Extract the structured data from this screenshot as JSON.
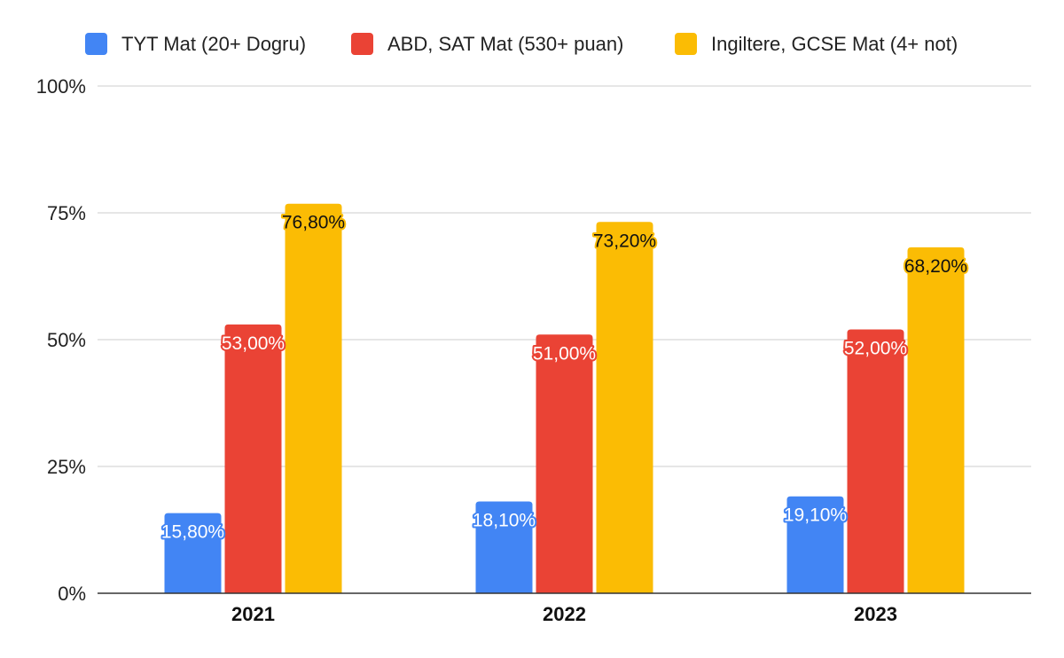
{
  "chart_data": {
    "type": "bar",
    "title": "",
    "xlabel": "",
    "ylabel": "",
    "categories": [
      "2021",
      "2022",
      "2023"
    ],
    "ylim": [
      0,
      100
    ],
    "yticks": [
      0,
      25,
      50,
      75,
      100
    ],
    "ytick_labels": [
      "0%",
      "25%",
      "50%",
      "75%",
      "100%"
    ],
    "grid": true,
    "legend_position": "top",
    "series": [
      {
        "name": "TYT Mat (20+ Dogru)",
        "color": "#4285F4",
        "label_text_color": "#ffffff",
        "label_halo_color": "#4285F4",
        "values": [
          15.8,
          18.1,
          19.1
        ],
        "labels": [
          "15,80%",
          "18,10%",
          "19,10%"
        ]
      },
      {
        "name": "ABD, SAT Mat (530+ puan)",
        "color": "#EA4335",
        "label_text_color": "#ffffff",
        "label_halo_color": "#EA4335",
        "values": [
          53.0,
          51.0,
          52.0
        ],
        "labels": [
          "53,00%",
          "51,00%",
          "52,00%"
        ]
      },
      {
        "name": "Ingiltere, GCSE Mat (4+ not)",
        "color": "#FBBC04",
        "label_text_color": "#111111",
        "label_halo_color": "#FBBC04",
        "values": [
          76.8,
          73.2,
          68.2
        ],
        "labels": [
          "76,80%",
          "73,20%",
          "68,20%"
        ]
      }
    ]
  }
}
